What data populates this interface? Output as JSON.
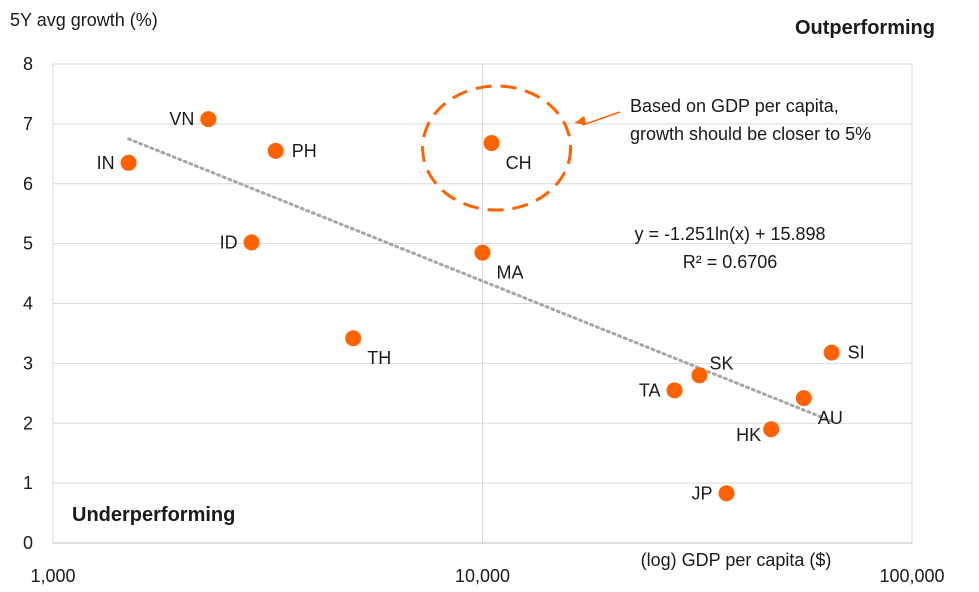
{
  "chart_data": {
    "type": "scatter",
    "ylabel": "5Y avg growth (%)",
    "xlabel": "(log) GDP per capita ($)",
    "x_scale": "log",
    "xlim": [
      1000,
      100000
    ],
    "ylim": [
      0,
      8
    ],
    "x_ticks": [
      {
        "value": 1000,
        "label": "1,000"
      },
      {
        "value": 10000,
        "label": "10,000"
      },
      {
        "value": 100000,
        "label": "100,000"
      }
    ],
    "y_ticks": [
      0,
      1,
      2,
      3,
      4,
      5,
      6,
      7,
      8
    ],
    "grid": true,
    "marker_color": "#ff6200",
    "points": [
      {
        "label": "IN",
        "x": 1500,
        "y": 6.35,
        "label_pos": "left"
      },
      {
        "label": "VN",
        "x": 2300,
        "y": 7.08,
        "label_pos": "left"
      },
      {
        "label": "PH",
        "x": 3300,
        "y": 6.55,
        "label_pos": "right"
      },
      {
        "label": "ID",
        "x": 2900,
        "y": 5.02,
        "label_pos": "left"
      },
      {
        "label": "CH",
        "x": 10500,
        "y": 6.68,
        "label_pos": "below-right"
      },
      {
        "label": "MA",
        "x": 10000,
        "y": 4.85,
        "label_pos": "below-right"
      },
      {
        "label": "TH",
        "x": 5000,
        "y": 3.42,
        "label_pos": "below-right"
      },
      {
        "label": "TA",
        "x": 28000,
        "y": 2.55,
        "label_pos": "left"
      },
      {
        "label": "SK",
        "x": 32000,
        "y": 2.8,
        "label_pos": "above-right"
      },
      {
        "label": "JP",
        "x": 37000,
        "y": 0.83,
        "label_pos": "left"
      },
      {
        "label": "HK",
        "x": 47000,
        "y": 1.9,
        "label_pos": "below-left"
      },
      {
        "label": "AU",
        "x": 56000,
        "y": 2.42,
        "label_pos": "below-right"
      },
      {
        "label": "SI",
        "x": 65000,
        "y": 3.18,
        "label_pos": "right"
      }
    ],
    "trendline": {
      "style": "dotted",
      "color": "#a6a6a6",
      "x_start": 1500,
      "x_end": 65000,
      "equation": "y = -1.251ln(x) + 15.898",
      "r_squared": "R² = 0.6706"
    },
    "annotations": {
      "top_right": "Outperforming",
      "bottom_left": "Underperforming",
      "callout_line1": "Based on GDP per capita,",
      "callout_line2": "growth should be closer to 5%",
      "highlight_color": "#ff6200"
    }
  }
}
